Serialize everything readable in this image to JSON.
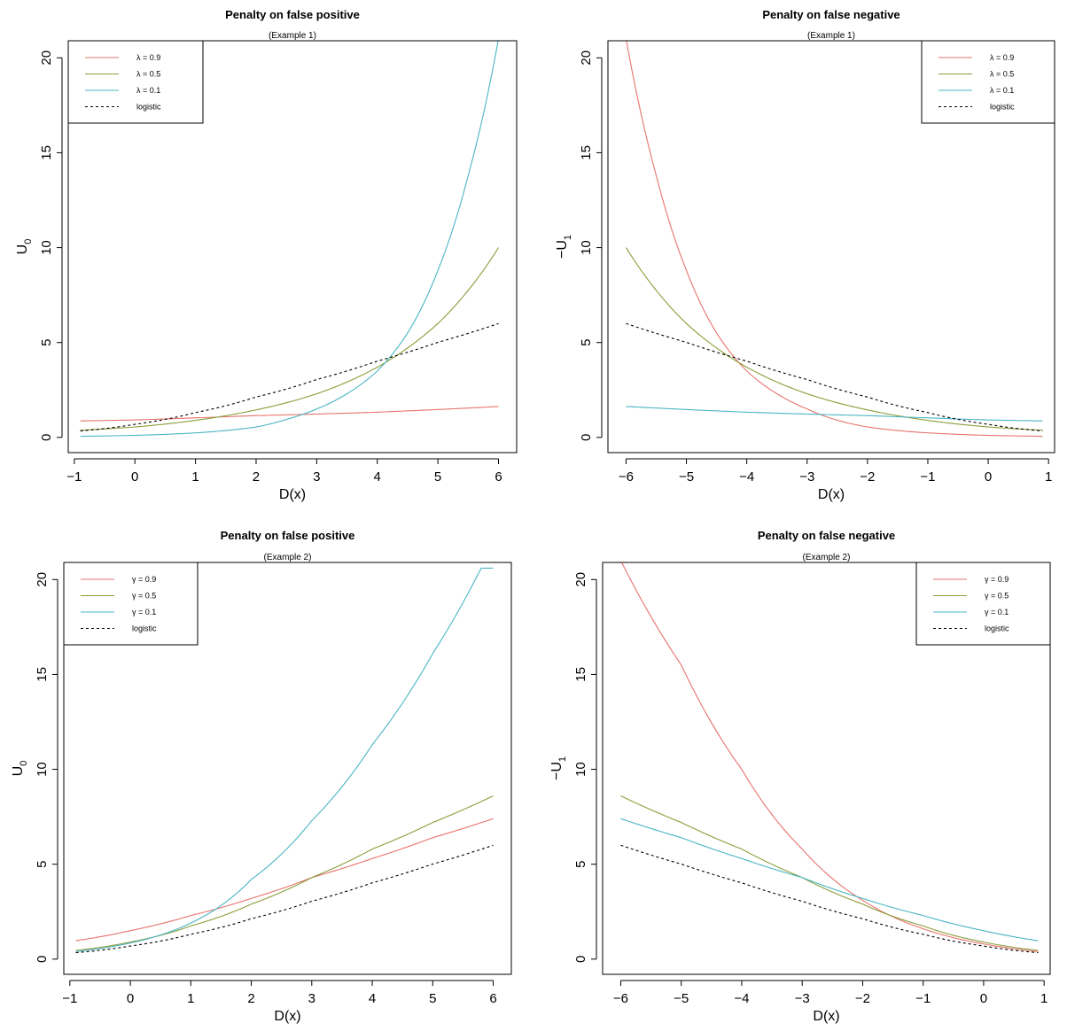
{
  "chart_data": [
    {
      "type": "line",
      "title": "Penalty on false positive",
      "subtitle": "(Example 1)",
      "xlabel": "D(x)",
      "ylabel": "U",
      "ylabel_sub": "0",
      "xlim": [
        -1.1,
        6.3
      ],
      "ylim": [
        -0.8,
        20.9
      ],
      "xticks": [
        -1,
        0,
        1,
        2,
        3,
        4,
        5,
        6
      ],
      "xtick_labels": [
        "−1",
        "0",
        "1",
        "2",
        "3",
        "4",
        "5",
        "6"
      ],
      "yticks": [
        0,
        5,
        10,
        15,
        20
      ],
      "ytick_labels": [
        "0",
        "5",
        "10",
        "15",
        "20"
      ],
      "grid": false,
      "legend_position": "top-left",
      "x_range": [
        -0.9,
        6
      ],
      "series": [
        {
          "name": "λ = 0.9",
          "color": "#e6736e",
          "dashed": false,
          "x": [
            -0.9,
            0,
            1,
            2,
            3,
            4,
            5,
            6
          ],
          "y": [
            0.87,
            0.92,
            1.03,
            1.15,
            1.23,
            1.33,
            1.47,
            1.63
          ]
        },
        {
          "name": "λ = 0.5",
          "color": "#8a9e3a",
          "dashed": false,
          "x": [
            -0.9,
            0,
            1,
            2,
            3,
            4,
            5,
            6
          ],
          "y": [
            0.38,
            0.55,
            0.9,
            1.45,
            2.3,
            3.7,
            6.0,
            10.0
          ]
        },
        {
          "name": "λ = 0.1",
          "color": "#4ab5c4",
          "dashed": false,
          "x": [
            -0.9,
            0,
            1,
            2,
            2.5,
            3,
            3.5,
            4,
            4.5,
            5,
            5.5,
            6
          ],
          "y": [
            0.06,
            0.11,
            0.24,
            0.55,
            0.95,
            1.5,
            2.3,
            3.5,
            5.5,
            8.8,
            13.8,
            21.0
          ]
        },
        {
          "name": "logistic",
          "color": "#000000",
          "dashed": true,
          "x": [
            -0.9,
            0,
            1,
            2,
            3,
            4,
            5,
            6
          ],
          "y": [
            0.34,
            0.69,
            1.31,
            2.13,
            3.05,
            4.02,
            5.01,
            6.0
          ]
        }
      ]
    },
    {
      "type": "line",
      "title": "Penalty on false negative",
      "subtitle": "(Example 1)",
      "xlabel": "D(x)",
      "ylabel": "−U",
      "ylabel_sub": "1",
      "xlim": [
        -6.3,
        1.1
      ],
      "ylim": [
        -0.8,
        20.9
      ],
      "xticks": [
        -6,
        -5,
        -4,
        -3,
        -2,
        -1,
        0,
        1
      ],
      "xtick_labels": [
        "−6",
        "−5",
        "−4",
        "−3",
        "−2",
        "−1",
        "0",
        "1"
      ],
      "yticks": [
        0,
        5,
        10,
        15,
        20
      ],
      "ytick_labels": [
        "0",
        "5",
        "10",
        "15",
        "20"
      ],
      "grid": false,
      "legend_position": "top-right",
      "x_range": [
        -6,
        0.9
      ],
      "series": [
        {
          "name": "λ = 0.9",
          "color": "#e6736e",
          "dashed": false,
          "x": [
            -6,
            -5.5,
            -5,
            -4.5,
            -4,
            -3.5,
            -3,
            -2,
            -1,
            0,
            0.9
          ],
          "y": [
            21.0,
            13.8,
            8.8,
            5.5,
            3.5,
            2.3,
            1.5,
            0.55,
            0.24,
            0.11,
            0.06
          ]
        },
        {
          "name": "λ = 0.5",
          "color": "#8a9e3a",
          "dashed": false,
          "x": [
            -6,
            -5,
            -4,
            -3,
            -2,
            -1,
            0,
            0.9
          ],
          "y": [
            10.0,
            6.0,
            3.7,
            2.3,
            1.45,
            0.9,
            0.55,
            0.38
          ]
        },
        {
          "name": "λ = 0.1",
          "color": "#4ab5c4",
          "dashed": false,
          "x": [
            -6,
            -5,
            -4,
            -3,
            -2,
            -1,
            0,
            0.9
          ],
          "y": [
            1.63,
            1.47,
            1.33,
            1.23,
            1.15,
            1.03,
            0.92,
            0.87
          ]
        },
        {
          "name": "logistic",
          "color": "#000000",
          "dashed": true,
          "x": [
            -6,
            -5,
            -4,
            -3,
            -2,
            -1,
            0,
            0.9
          ],
          "y": [
            6.0,
            5.01,
            4.02,
            3.05,
            2.13,
            1.31,
            0.69,
            0.34
          ]
        }
      ]
    },
    {
      "type": "line",
      "title": "Penalty on false positive",
      "subtitle": "(Example 2)",
      "xlabel": "D(x)",
      "ylabel": "U",
      "ylabel_sub": "0",
      "xlim": [
        -1.1,
        6.3
      ],
      "ylim": [
        -0.8,
        20.9
      ],
      "xticks": [
        -1,
        0,
        1,
        2,
        3,
        4,
        5,
        6
      ],
      "xtick_labels": [
        "−1",
        "0",
        "1",
        "2",
        "3",
        "4",
        "5",
        "6"
      ],
      "yticks": [
        0,
        5,
        10,
        15,
        20
      ],
      "ytick_labels": [
        "0",
        "5",
        "10",
        "15",
        "20"
      ],
      "grid": false,
      "legend_position": "top-left",
      "x_range": [
        -0.9,
        6
      ],
      "series": [
        {
          "name": "γ = 0.9",
          "color": "#e6736e",
          "dashed": false,
          "x": [
            -0.9,
            0,
            1,
            2,
            3,
            4,
            5,
            6
          ],
          "y": [
            0.97,
            1.5,
            2.3,
            3.2,
            4.3,
            5.3,
            6.4,
            7.4
          ]
        },
        {
          "name": "γ = 0.5",
          "color": "#8a9e3a",
          "dashed": false,
          "x": [
            -0.9,
            0,
            1,
            2,
            3,
            4,
            5,
            6
          ],
          "y": [
            0.46,
            0.9,
            1.75,
            2.9,
            4.3,
            5.8,
            7.2,
            8.6
          ]
        },
        {
          "name": "γ = 0.1",
          "color": "#4ab5c4",
          "dashed": false,
          "x": [
            -0.9,
            0,
            1,
            2,
            3,
            4,
            5,
            5.8
          ],
          "y": [
            0.4,
            0.85,
            1.9,
            4.2,
            7.3,
            11.3,
            16.1,
            20.6
          ]
        },
        {
          "name": "logistic",
          "color": "#000000",
          "dashed": true,
          "x": [
            -0.9,
            0,
            1,
            2,
            3,
            4,
            5,
            6
          ],
          "y": [
            0.34,
            0.69,
            1.31,
            2.13,
            3.05,
            4.02,
            5.01,
            6.0
          ]
        }
      ]
    },
    {
      "type": "line",
      "title": "Penalty on false negative",
      "subtitle": "(Example 2)",
      "xlabel": "D(x)",
      "ylabel": "−U",
      "ylabel_sub": "1",
      "xlim": [
        -6.3,
        1.1
      ],
      "ylim": [
        -0.8,
        20.9
      ],
      "xticks": [
        -6,
        -5,
        -4,
        -3,
        -2,
        -1,
        0,
        1
      ],
      "xtick_labels": [
        "−6",
        "−5",
        "−4",
        "−3",
        "−2",
        "−1",
        "0",
        "1"
      ],
      "yticks": [
        0,
        5,
        10,
        15,
        20
      ],
      "ytick_labels": [
        "0",
        "5",
        "10",
        "15",
        "20"
      ],
      "grid": false,
      "legend_position": "top-right",
      "x_range": [
        -6,
        0.9
      ],
      "series": [
        {
          "name": "γ = 0.9",
          "color": "#e6736e",
          "dashed": false,
          "x": [
            -6,
            -5,
            -4,
            -3,
            -2,
            -1,
            0,
            0.9
          ],
          "y": [
            21.0,
            15.5,
            10.0,
            5.8,
            3.1,
            1.6,
            0.8,
            0.4
          ]
        },
        {
          "name": "γ = 0.5",
          "color": "#8a9e3a",
          "dashed": false,
          "x": [
            -6,
            -5,
            -4,
            -3,
            -2,
            -1,
            0,
            0.9
          ],
          "y": [
            8.6,
            7.2,
            5.8,
            4.3,
            2.9,
            1.75,
            0.9,
            0.46
          ]
        },
        {
          "name": "γ = 0.1",
          "color": "#4ab5c4",
          "dashed": false,
          "x": [
            -6,
            -5,
            -4,
            -3,
            -2,
            -1,
            0,
            0.9
          ],
          "y": [
            7.4,
            6.4,
            5.3,
            4.3,
            3.2,
            2.3,
            1.5,
            0.97
          ]
        },
        {
          "name": "logistic",
          "color": "#000000",
          "dashed": true,
          "x": [
            -6,
            -5,
            -4,
            -3,
            -2,
            -1,
            0,
            0.9
          ],
          "y": [
            6.0,
            5.01,
            4.02,
            3.05,
            2.13,
            1.31,
            0.69,
            0.34
          ]
        }
      ]
    }
  ]
}
